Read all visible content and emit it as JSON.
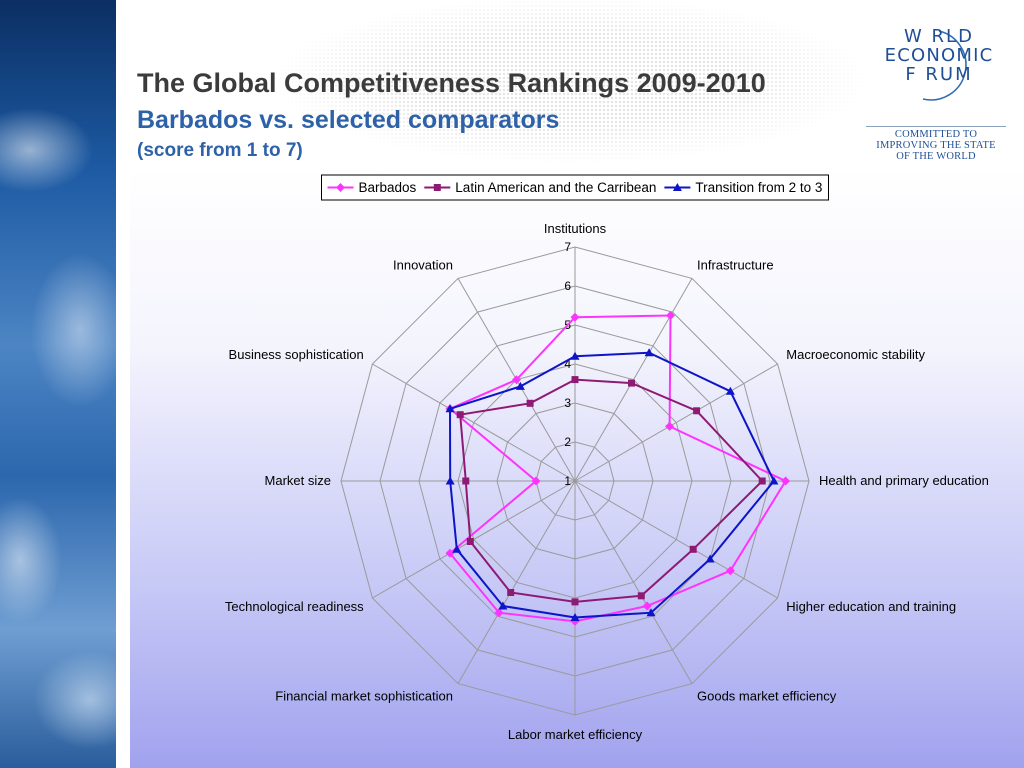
{
  "slide": {
    "title": "The Global Competitiveness Rankings 2009-2010",
    "subtitle": "Barbados vs. selected comparators",
    "note": "(score from 1 to 7)"
  },
  "logo": {
    "line1": "W RLD",
    "line2": "ECONOMIC",
    "line3": "F RUM",
    "tagline": [
      "COMMITTED TO",
      "IMPROVING THE STATE",
      "OF THE WORLD"
    ],
    "color": "#1f4f95",
    "icon": "wef-arc-logo"
  },
  "chart_data": {
    "type": "radar",
    "axes": [
      "Institutions",
      "Infrastructure",
      "Macroeconomic stability",
      "Health and primary education",
      "Higher education and training",
      "Goods market efficiency",
      "Labor market efficiency",
      "Financial market sophistication",
      "Technological readiness",
      "Market size",
      "Business sophistication",
      "Innovation"
    ],
    "rlim": [
      1,
      7
    ],
    "ticks": [
      1,
      2,
      3,
      4,
      5,
      6,
      7
    ],
    "grid": true,
    "legend_position": "top",
    "series": [
      {
        "name": "Barbados",
        "color": "#ff33ff",
        "marker": "diamond",
        "values": [
          5.2,
          5.9,
          3.8,
          6.4,
          5.6,
          4.7,
          4.6,
          4.9,
          4.7,
          2.0,
          4.7,
          4.0
        ]
      },
      {
        "name": "Latin American and the Carribean",
        "color": "#8e1a74",
        "marker": "square",
        "values": [
          3.6,
          3.9,
          4.6,
          5.8,
          4.5,
          4.4,
          4.1,
          4.3,
          4.1,
          3.8,
          4.4,
          3.3
        ]
      },
      {
        "name": "Transition from 2 to 3",
        "color": "#0e14c8",
        "marker": "triangle",
        "values": [
          4.2,
          4.8,
          5.6,
          6.1,
          5.0,
          4.9,
          4.5,
          4.7,
          4.5,
          4.2,
          4.7,
          3.8
        ]
      }
    ]
  }
}
